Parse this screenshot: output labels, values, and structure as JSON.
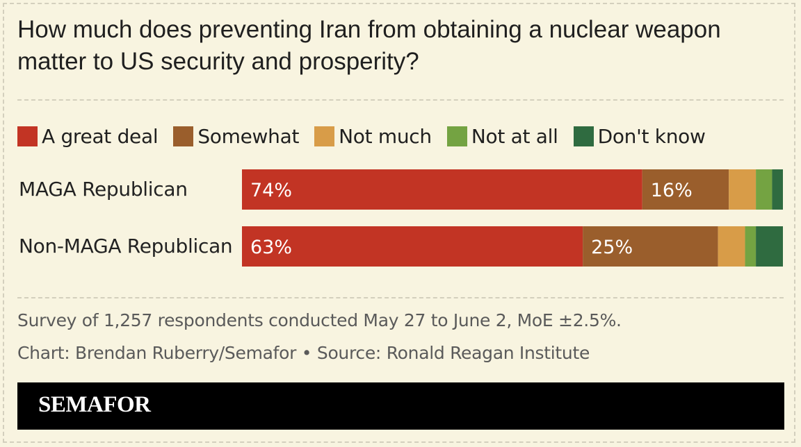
{
  "chart_data": {
    "type": "bar",
    "orientation": "horizontal",
    "stacked": true,
    "title": "How much does preventing Iran from obtaining a nuclear weapon matter to US security and prosperity?",
    "categories": [
      "MAGA Republican",
      "Non-MAGA Republican"
    ],
    "series": [
      {
        "name": "A great deal",
        "color": "#c23424",
        "values": [
          74,
          63
        ],
        "labels": [
          "74%",
          "63%"
        ]
      },
      {
        "name": "Somewhat",
        "color": "#9a5e2c",
        "values": [
          16,
          25
        ],
        "labels": [
          "16%",
          "25%"
        ]
      },
      {
        "name": "Not much",
        "color": "#d89c48",
        "values": [
          5,
          5
        ],
        "labels": [
          "",
          ""
        ]
      },
      {
        "name": "Not at all",
        "color": "#74a342",
        "values": [
          3,
          2
        ],
        "labels": [
          "",
          ""
        ]
      },
      {
        "name": "Don't know",
        "color": "#2f6b40",
        "values": [
          2,
          5
        ],
        "labels": [
          "",
          ""
        ]
      }
    ],
    "xlim": [
      0,
      100
    ],
    "legend": "top"
  },
  "footer": {
    "survey_note": "Survey of 1,257 respondents conducted May 27 to June 2, MoE ±2.5%.",
    "credit": "Chart: Brendan Ruberry/Semafor • Source: Ronald Reagan Institute",
    "brand": "SEMAFOR"
  }
}
